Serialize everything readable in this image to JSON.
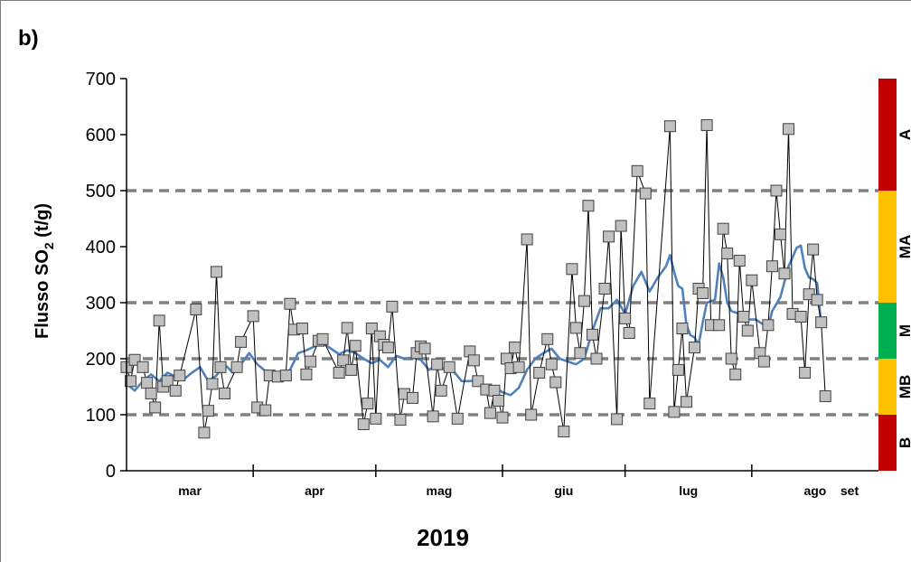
{
  "panel_label": "b)",
  "chart_data": {
    "type": "line",
    "ylabel_main": "Flusso SO",
    "ylabel_sub": "2",
    "ylabel_unit": " (t/g)",
    "xlabel": "2019",
    "ylim": [
      0,
      700
    ],
    "yticks": [
      "0",
      "100",
      "200",
      "300",
      "400",
      "500",
      "600",
      "700"
    ],
    "xlim": [
      0,
      184
    ],
    "months": [
      {
        "label": "mar",
        "start": 0,
        "end": 31
      },
      {
        "label": "apr",
        "start": 31,
        "end": 61
      },
      {
        "label": "mag",
        "start": 61,
        "end": 92
      },
      {
        "label": "giu",
        "start": 92,
        "end": 122
      },
      {
        "label": "lug",
        "start": 122,
        "end": 153
      },
      {
        "label": "ago",
        "start": 153,
        "end": 184
      },
      {
        "label": "set",
        "start": 184,
        "end": 184
      }
    ],
    "thresholds": [
      100,
      200,
      300,
      500
    ],
    "classes": [
      {
        "label": "B",
        "from": 0,
        "to": 100,
        "color": "#c00000"
      },
      {
        "label": "MB",
        "from": 100,
        "to": 200,
        "color": "#ffc000"
      },
      {
        "label": "M",
        "from": 200,
        "to": 300,
        "color": "#00b050"
      },
      {
        "label": "MA",
        "from": 300,
        "to": 500,
        "color": "#ffc000"
      },
      {
        "label": "A",
        "from": 500,
        "to": 700,
        "color": "#c00000"
      }
    ],
    "series": [
      {
        "style": "daily-markers",
        "color": "#000000",
        "marker_fill": "#c0c0c0",
        "points": [
          [
            0,
            185
          ],
          [
            1,
            160
          ],
          [
            2,
            198
          ],
          [
            4,
            185
          ],
          [
            5,
            157
          ],
          [
            6,
            138
          ],
          [
            7,
            113
          ],
          [
            8,
            268
          ],
          [
            9,
            150
          ],
          [
            10,
            160
          ],
          [
            12,
            143
          ],
          [
            13,
            170
          ],
          [
            17,
            288
          ],
          [
            19,
            68
          ],
          [
            20,
            107
          ],
          [
            21,
            155
          ],
          [
            22,
            355
          ],
          [
            23,
            185
          ],
          [
            24,
            138
          ],
          [
            27,
            185
          ],
          [
            28,
            230
          ],
          [
            31,
            276
          ],
          [
            32,
            113
          ],
          [
            34,
            108
          ],
          [
            35,
            170
          ],
          [
            37,
            168
          ],
          [
            39,
            170
          ],
          [
            40,
            298
          ],
          [
            41,
            252
          ],
          [
            43,
            254
          ],
          [
            44,
            172
          ],
          [
            45,
            195
          ],
          [
            47,
            232
          ],
          [
            48,
            235
          ],
          [
            52,
            175
          ],
          [
            53,
            197
          ],
          [
            54,
            255
          ],
          [
            55,
            180
          ],
          [
            56,
            223
          ],
          [
            58,
            83
          ],
          [
            59,
            120
          ],
          [
            60,
            254
          ],
          [
            61,
            93
          ],
          [
            62,
            240
          ],
          [
            63,
            225
          ],
          [
            64,
            220
          ],
          [
            65,
            293
          ],
          [
            67,
            91
          ],
          [
            68,
            137
          ],
          [
            70,
            130
          ],
          [
            71,
            210
          ],
          [
            72,
            222
          ],
          [
            73,
            218
          ],
          [
            75,
            97
          ],
          [
            76,
            190
          ],
          [
            77,
            143
          ],
          [
            79,
            185
          ],
          [
            81,
            93
          ],
          [
            84,
            213
          ],
          [
            85,
            197
          ],
          [
            86,
            160
          ],
          [
            88,
            145
          ],
          [
            89,
            103
          ],
          [
            90,
            143
          ],
          [
            91,
            125
          ],
          [
            92,
            95
          ],
          [
            93,
            200
          ],
          [
            94,
            183
          ],
          [
            95,
            220
          ],
          [
            96,
            185
          ],
          [
            98,
            413
          ],
          [
            99,
            100
          ],
          [
            101,
            175
          ],
          [
            103,
            235
          ],
          [
            104,
            190
          ],
          [
            105,
            158
          ],
          [
            107,
            70
          ],
          [
            109,
            360
          ],
          [
            110,
            255
          ],
          [
            111,
            210
          ],
          [
            112,
            303
          ],
          [
            113,
            473
          ],
          [
            114,
            243
          ],
          [
            115,
            200
          ],
          [
            117,
            325
          ],
          [
            118,
            418
          ],
          [
            120,
            92
          ],
          [
            121,
            437
          ],
          [
            122,
            272
          ],
          [
            123,
            246
          ],
          [
            125,
            535
          ],
          [
            127,
            495
          ],
          [
            128,
            120
          ],
          [
            133,
            615
          ],
          [
            134,
            105
          ],
          [
            135,
            180
          ],
          [
            136,
            254
          ],
          [
            137,
            123
          ],
          [
            139,
            220
          ],
          [
            140,
            325
          ],
          [
            141,
            317
          ],
          [
            142,
            617
          ],
          [
            143,
            260
          ],
          [
            145,
            260
          ],
          [
            146,
            432
          ],
          [
            147,
            388
          ],
          [
            148,
            200
          ],
          [
            149,
            172
          ],
          [
            150,
            375
          ],
          [
            151,
            275
          ],
          [
            152,
            250
          ],
          [
            153,
            340
          ],
          [
            155,
            210
          ],
          [
            156,
            195
          ],
          [
            157,
            260
          ],
          [
            158,
            365
          ],
          [
            159,
            500
          ],
          [
            160,
            422
          ],
          [
            161,
            352
          ],
          [
            162,
            610
          ],
          [
            163,
            280
          ],
          [
            165,
            275
          ],
          [
            166,
            175
          ],
          [
            167,
            315
          ],
          [
            168,
            395
          ],
          [
            169,
            305
          ],
          [
            170,
            265
          ],
          [
            171,
            133
          ]
        ]
      },
      {
        "style": "moving-average",
        "color": "#4f81bd",
        "points": [
          [
            0,
            155
          ],
          [
            2,
            143
          ],
          [
            4,
            160
          ],
          [
            6,
            172
          ],
          [
            8,
            160
          ],
          [
            10,
            175
          ],
          [
            12,
            168
          ],
          [
            14,
            163
          ],
          [
            16,
            175
          ],
          [
            18,
            185
          ],
          [
            20,
            160
          ],
          [
            22,
            170
          ],
          [
            24,
            190
          ],
          [
            26,
            175
          ],
          [
            28,
            190
          ],
          [
            30,
            210
          ],
          [
            32,
            190
          ],
          [
            34,
            178
          ],
          [
            36,
            177
          ],
          [
            38,
            172
          ],
          [
            40,
            180
          ],
          [
            42,
            210
          ],
          [
            44,
            215
          ],
          [
            46,
            222
          ],
          [
            48,
            228
          ],
          [
            50,
            218
          ],
          [
            52,
            208
          ],
          [
            54,
            215
          ],
          [
            56,
            210
          ],
          [
            58,
            200
          ],
          [
            60,
            192
          ],
          [
            62,
            198
          ],
          [
            64,
            185
          ],
          [
            66,
            205
          ],
          [
            68,
            200
          ],
          [
            70,
            202
          ],
          [
            72,
            198
          ],
          [
            74,
            180
          ],
          [
            76,
            190
          ],
          [
            78,
            180
          ],
          [
            80,
            178
          ],
          [
            82,
            160
          ],
          [
            84,
            160
          ],
          [
            86,
            162
          ],
          [
            88,
            148
          ],
          [
            90,
            150
          ],
          [
            92,
            140
          ],
          [
            94,
            135
          ],
          [
            96,
            148
          ],
          [
            98,
            180
          ],
          [
            100,
            200
          ],
          [
            102,
            210
          ],
          [
            104,
            218
          ],
          [
            106,
            200
          ],
          [
            108,
            195
          ],
          [
            110,
            190
          ],
          [
            112,
            200
          ],
          [
            114,
            250
          ],
          [
            116,
            290
          ],
          [
            118,
            290
          ],
          [
            120,
            305
          ],
          [
            122,
            280
          ],
          [
            124,
            330
          ],
          [
            126,
            355
          ],
          [
            128,
            320
          ],
          [
            130,
            345
          ],
          [
            132,
            365
          ],
          [
            133,
            385
          ],
          [
            134,
            355
          ],
          [
            135,
            330
          ],
          [
            136,
            325
          ],
          [
            137,
            260
          ],
          [
            138,
            242
          ],
          [
            139,
            238
          ],
          [
            140,
            225
          ],
          [
            141,
            265
          ],
          [
            142,
            300
          ],
          [
            144,
            305
          ],
          [
            145,
            370
          ],
          [
            146,
            345
          ],
          [
            147,
            300
          ],
          [
            148,
            285
          ],
          [
            150,
            280
          ],
          [
            152,
            270
          ],
          [
            154,
            270
          ],
          [
            156,
            260
          ],
          [
            157,
            255
          ],
          [
            158,
            285
          ],
          [
            160,
            310
          ],
          [
            162,
            365
          ],
          [
            164,
            398
          ],
          [
            165,
            402
          ],
          [
            166,
            362
          ],
          [
            167,
            345
          ],
          [
            168,
            342
          ],
          [
            169,
            335
          ],
          [
            170,
            260
          ]
        ]
      }
    ]
  }
}
